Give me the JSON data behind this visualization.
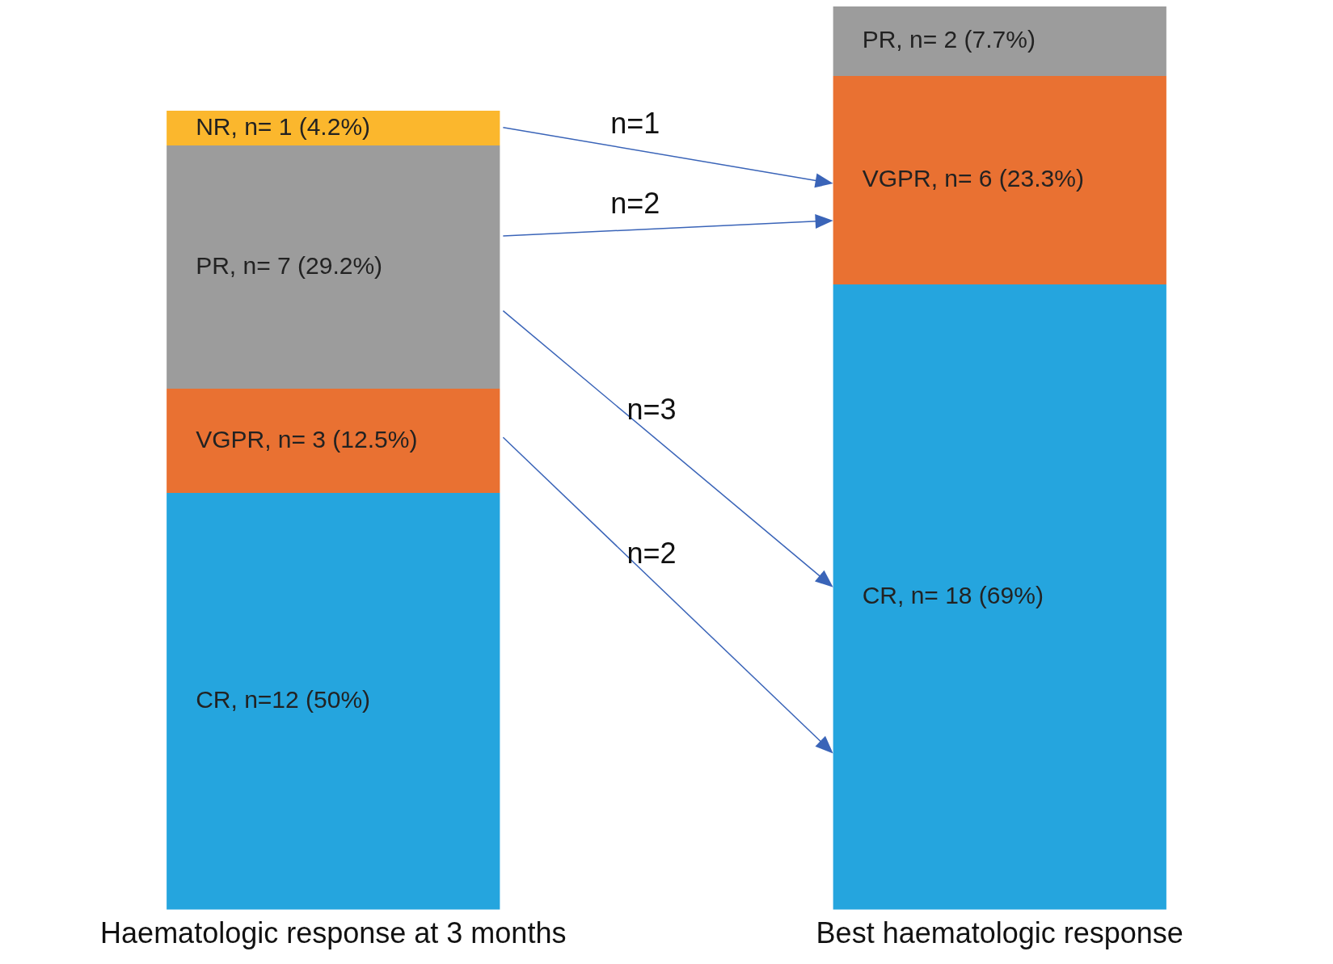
{
  "chart_data": {
    "type": "bar",
    "stacked": true,
    "categories": [
      "Haematologic response at 3 months",
      "Best haematologic response"
    ],
    "series": [
      {
        "color": "#25a5de",
        "values": [
          12,
          18
        ],
        "value_labels": [
          "CR, n=12 (50%)",
          "CR, n= 18 (69%)"
        ]
      },
      {
        "color": "#e97132",
        "values": [
          3,
          6
        ],
        "value_labels": [
          "VGPR, n= 3 (12.5%)",
          "VGPR, n= 6 (23.3%)"
        ]
      },
      {
        "color": "#9c9c9c",
        "values": [
          7,
          2
        ],
        "value_labels": [
          "PR, n= 7 (29.2%)",
          "PR, n= 2 (7.7%)"
        ]
      },
      {
        "color": "#fbb72d",
        "values": [
          1,
          null
        ],
        "value_labels": [
          "NR, n= 1 (4.2%)",
          null
        ]
      }
    ],
    "annotations": [
      "n=1",
      "n=2",
      "n=3",
      "n=2"
    ],
    "grid": false,
    "legend": false,
    "tick_labels": "x"
  }
}
